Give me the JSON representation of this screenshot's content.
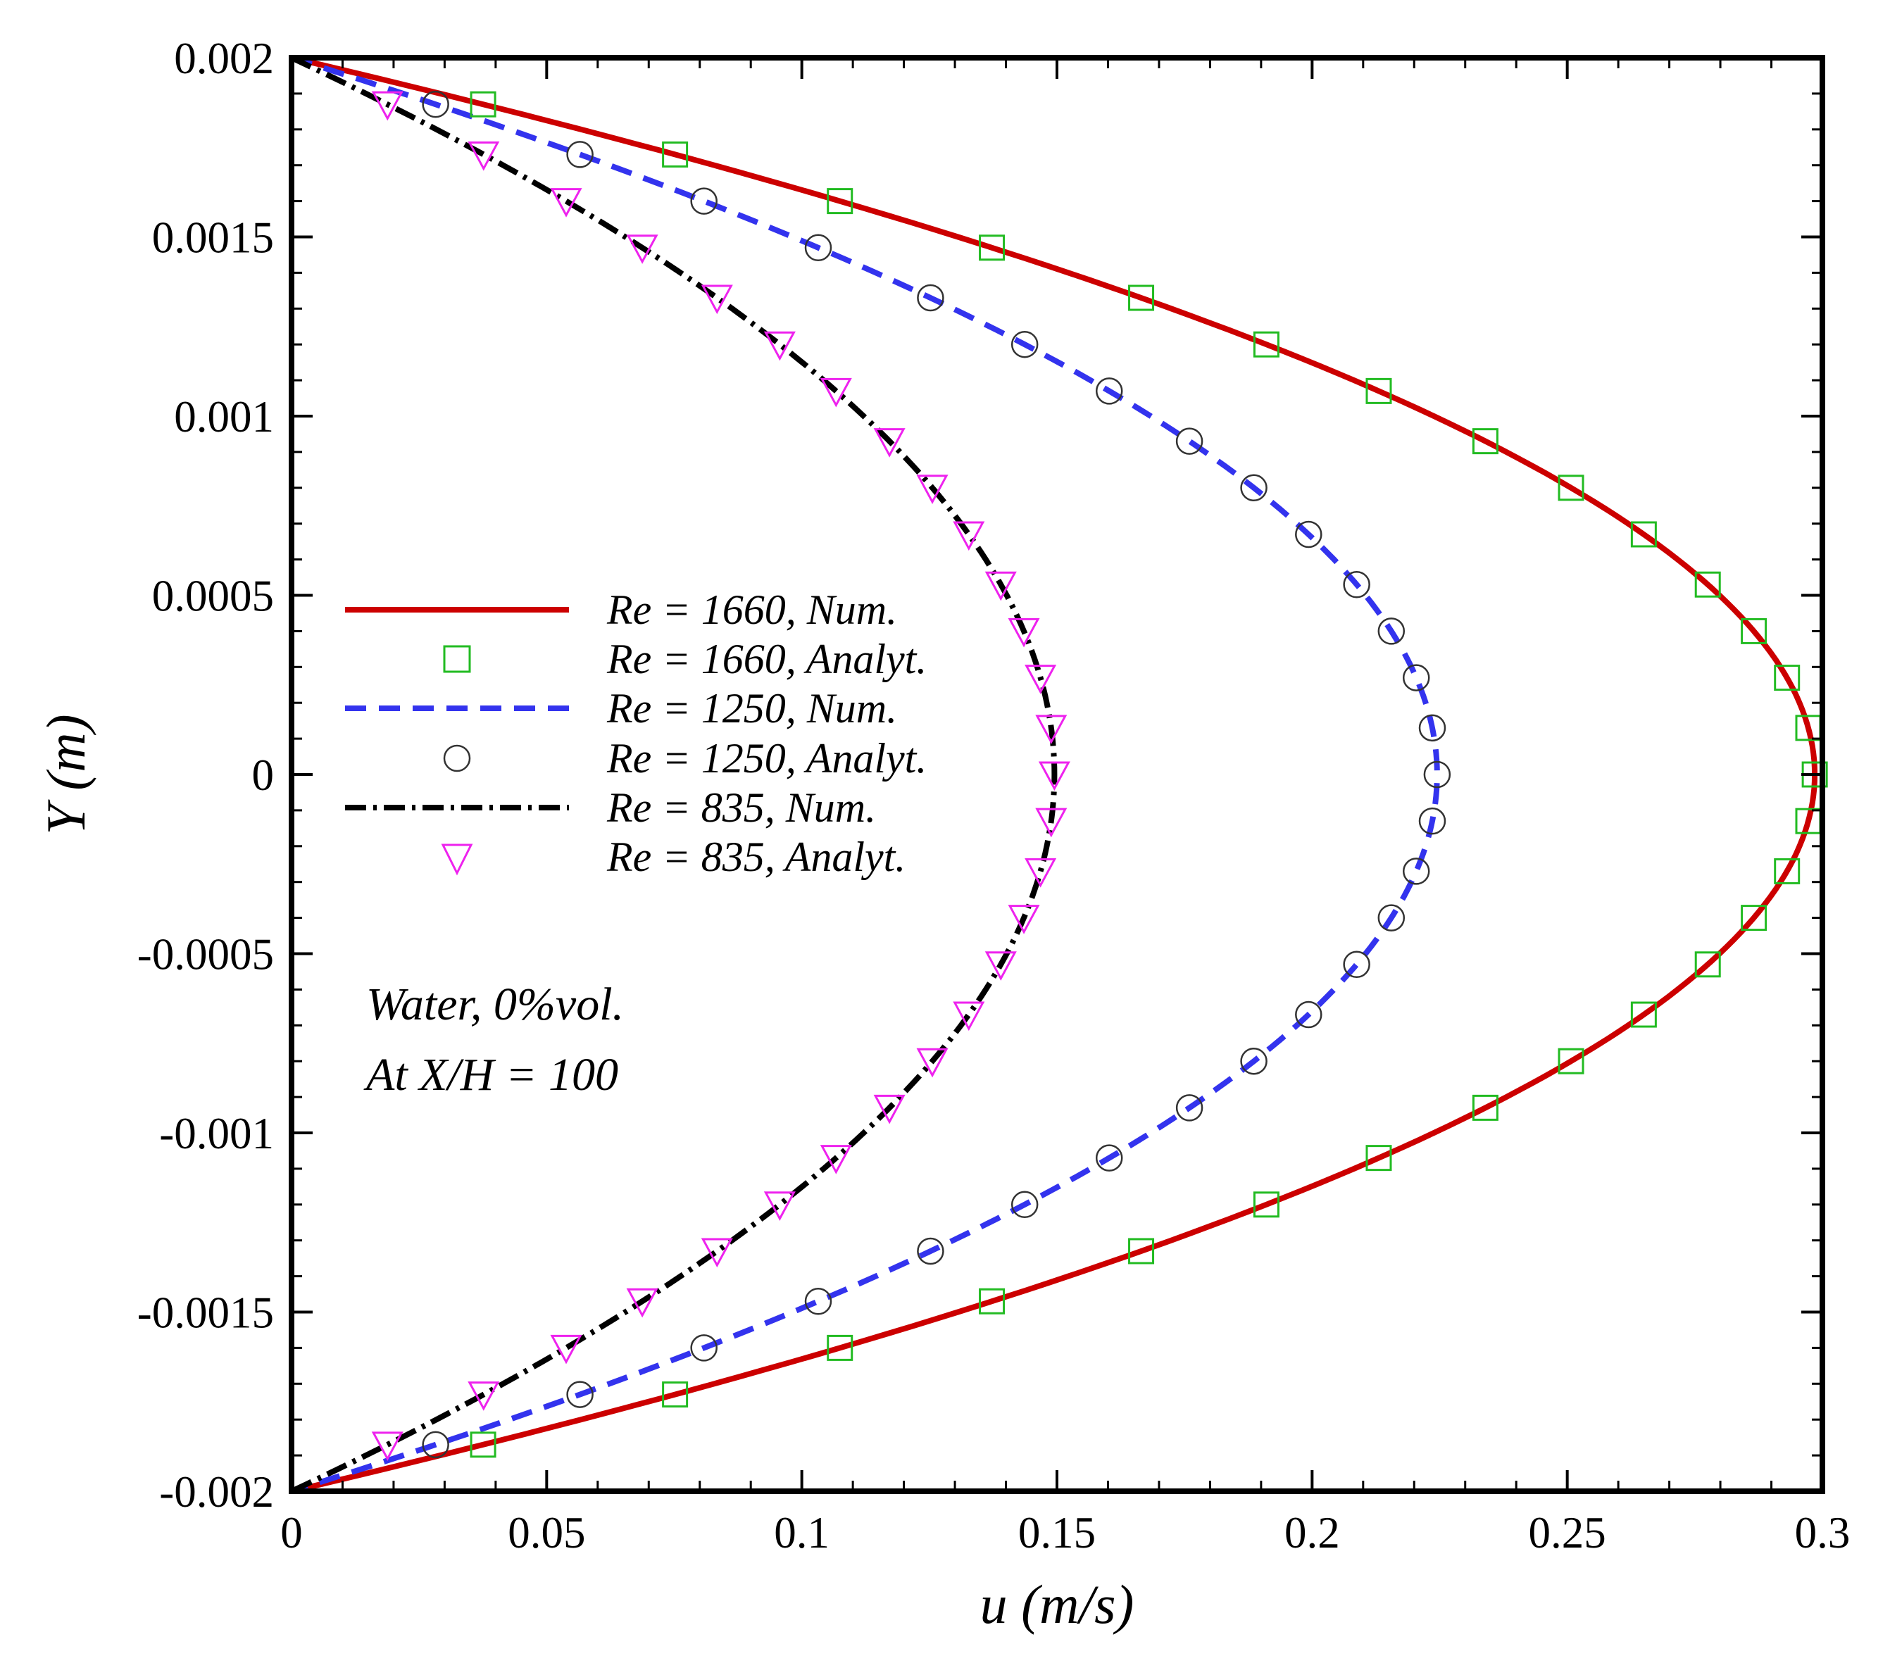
{
  "chart_data": {
    "type": "line",
    "xlabel": "u (m/s)",
    "ylabel": "Y (m)",
    "xlim": [
      0,
      0.3
    ],
    "ylim": [
      -0.002,
      0.002
    ],
    "xticks": [
      "0",
      "0.05",
      "0.1",
      "0.15",
      "0.2",
      "0.25",
      "0.3"
    ],
    "xtick_values": [
      0,
      0.05,
      0.1,
      0.15,
      0.2,
      0.25,
      0.3
    ],
    "yticks": [
      "-0.002",
      "-0.0015",
      "-0.001",
      "-0.0005",
      "0",
      "0.0005",
      "0.001",
      "0.0015",
      "0.002"
    ],
    "ytick_values": [
      -0.002,
      -0.0015,
      -0.001,
      -0.0005,
      0,
      0.0005,
      0.001,
      0.0015,
      0.002
    ],
    "annotations": [
      "Water, 0%vol.",
      "At X/H = 100"
    ],
    "legend_position": "center-left",
    "series": [
      {
        "name": "Re = 1660, Num.",
        "kind": "line",
        "style": "solid",
        "color": "#cc0000",
        "umax": 0.2985
      },
      {
        "name": "Re = 1660, Analyt.",
        "kind": "marker",
        "marker": "square",
        "color": "#22bb22",
        "umax": 0.2985
      },
      {
        "name": "Re = 1250, Num.",
        "kind": "line",
        "style": "dashed",
        "color": "#3333ee",
        "umax": 0.2245
      },
      {
        "name": "Re = 1250, Analyt.",
        "kind": "marker",
        "marker": "circle",
        "color": "#333333",
        "umax": 0.2245
      },
      {
        "name": "Re = 835, Num.",
        "kind": "line",
        "style": "dashdot",
        "color": "#000000",
        "umax": 0.1495
      },
      {
        "name": "Re = 835, Analyt.",
        "kind": "marker",
        "marker": "triangle-down",
        "color": "#ee22ee",
        "umax": 0.1495
      }
    ],
    "marker_y": [
      0.00187,
      0.00173,
      0.0016,
      0.00147,
      0.00133,
      0.0012,
      0.00107,
      0.00093,
      0.0008,
      0.00067,
      0.00053,
      0.0004,
      0.00027,
      0.00013,
      0,
      -0.00013,
      -0.00027,
      -0.0004,
      -0.00053,
      -0.00067,
      -0.0008,
      -0.00093,
      -0.00107,
      -0.0012,
      -0.00133,
      -0.00147,
      -0.0016,
      -0.00173,
      -0.00187
    ]
  }
}
